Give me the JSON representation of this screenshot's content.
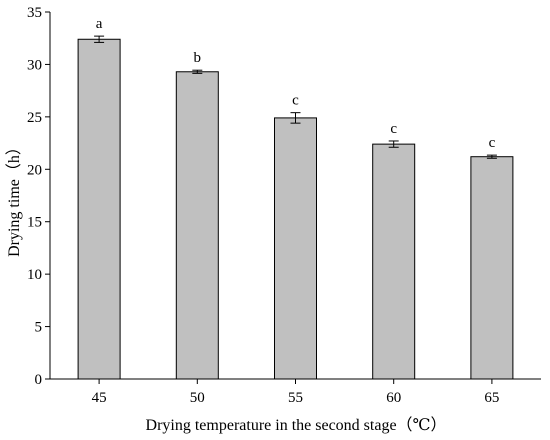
{
  "chart_data": {
    "type": "bar",
    "categories": [
      "45",
      "50",
      "55",
      "60",
      "65"
    ],
    "values": [
      32.4,
      29.3,
      24.9,
      22.4,
      21.2
    ],
    "errors": [
      0.3,
      0.15,
      0.5,
      0.3,
      0.15
    ],
    "significance_labels": [
      "a",
      "b",
      "c",
      "c",
      "c"
    ],
    "xlabel": "Drying temperature in the second stage（℃）",
    "ylabel": "Drying time（h）",
    "ylim": [
      0,
      35
    ],
    "yticks": [
      0,
      5,
      10,
      15,
      20,
      25,
      30,
      35
    ],
    "grid": false,
    "legend": "none",
    "colors": {
      "bar_fill": "#c0c0c0",
      "bar_stroke": "#000000",
      "axis": "#000000"
    }
  }
}
